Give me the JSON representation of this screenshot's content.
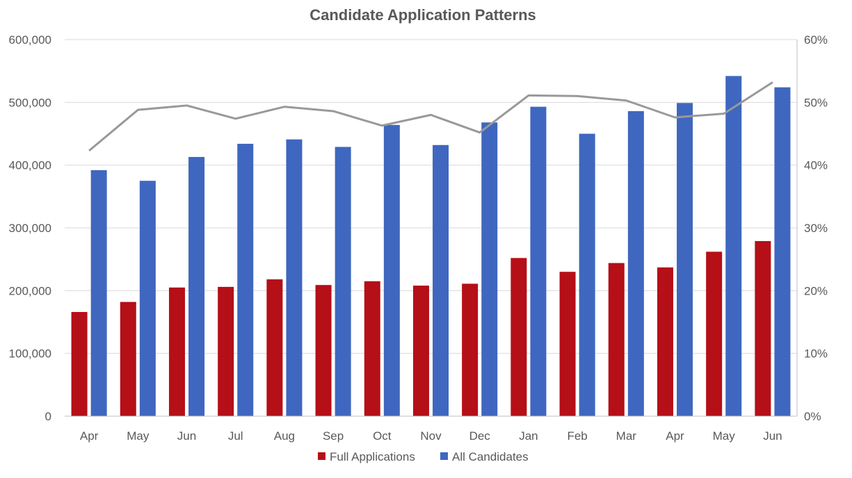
{
  "chart_data": {
    "type": "bar",
    "title": "Candidate Application Patterns",
    "categories": [
      "Apr",
      "May",
      "Jun",
      "Jul",
      "Aug",
      "Sep",
      "Oct",
      "Nov",
      "Dec",
      "Jan",
      "Feb",
      "Mar",
      "Apr",
      "May",
      "Jun"
    ],
    "series": [
      {
        "name": "Full Applications",
        "type": "bar",
        "axis": "left",
        "color": "#B50F17",
        "values": [
          166000,
          182000,
          205000,
          206000,
          218000,
          209000,
          215000,
          208000,
          211000,
          252000,
          230000,
          244000,
          237000,
          262000,
          279000
        ]
      },
      {
        "name": "All Candidates",
        "type": "bar",
        "axis": "left",
        "color": "#3F67BF",
        "values": [
          392000,
          375000,
          413000,
          434000,
          441000,
          429000,
          464000,
          432000,
          468000,
          493000,
          450000,
          486000,
          499000,
          542000,
          524000
        ]
      },
      {
        "type": "line",
        "axis": "right",
        "color": "#999999",
        "values": [
          0.423,
          0.488,
          0.495,
          0.474,
          0.493,
          0.486,
          0.463,
          0.48,
          0.452,
          0.511,
          0.51,
          0.503,
          0.476,
          0.482,
          0.532
        ]
      }
    ],
    "y_left": {
      "min": 0,
      "max": 600000,
      "ticks": [
        "0",
        "100,000",
        "200,000",
        "300,000",
        "400,000",
        "500,000",
        "600,000"
      ]
    },
    "y_right": {
      "min": 0,
      "max": 0.6,
      "ticks": [
        "0%",
        "10%",
        "20%",
        "30%",
        "40%",
        "50%",
        "60%"
      ]
    },
    "legend": {
      "position": "bottom",
      "items": [
        "Full Applications",
        "All Candidates"
      ]
    },
    "grid": true
  }
}
